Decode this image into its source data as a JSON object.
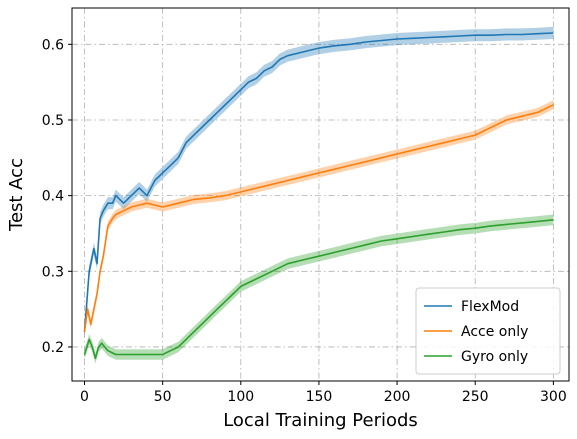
{
  "chart_data": {
    "type": "line",
    "xlabel": "Local Training Periods",
    "ylabel": "Test Acc",
    "xlim": [
      -8,
      310
    ],
    "ylim": [
      0.155,
      0.648
    ],
    "xticks": [
      0,
      50,
      100,
      150,
      200,
      250,
      300
    ],
    "yticks": [
      0.2,
      0.3,
      0.4,
      0.5,
      0.6
    ],
    "grid": true,
    "grid_style": "dash-dot",
    "legend_position": "lower-right",
    "series": [
      {
        "name": "FlexMod",
        "color": "#1f77b4",
        "band_half_width": 0.008,
        "x": [
          0,
          3,
          6,
          8,
          10,
          12,
          15,
          18,
          20,
          25,
          30,
          35,
          40,
          45,
          50,
          55,
          60,
          65,
          70,
          75,
          80,
          85,
          90,
          95,
          100,
          105,
          110,
          115,
          120,
          125,
          130,
          140,
          150,
          160,
          170,
          180,
          190,
          200,
          210,
          220,
          230,
          240,
          250,
          260,
          270,
          280,
          290,
          300
        ],
        "y": [
          0.22,
          0.3,
          0.33,
          0.31,
          0.37,
          0.38,
          0.39,
          0.39,
          0.4,
          0.39,
          0.4,
          0.41,
          0.4,
          0.42,
          0.43,
          0.44,
          0.45,
          0.47,
          0.48,
          0.49,
          0.5,
          0.51,
          0.52,
          0.53,
          0.54,
          0.55,
          0.555,
          0.565,
          0.57,
          0.58,
          0.585,
          0.59,
          0.595,
          0.598,
          0.6,
          0.603,
          0.605,
          0.607,
          0.608,
          0.609,
          0.61,
          0.611,
          0.612,
          0.612,
          0.613,
          0.613,
          0.614,
          0.615
        ]
      },
      {
        "name": "Acce only",
        "color": "#ff7f0e",
        "band_half_width": 0.006,
        "x": [
          0,
          2,
          4,
          6,
          8,
          10,
          12,
          15,
          18,
          20,
          25,
          30,
          40,
          50,
          60,
          70,
          80,
          90,
          100,
          110,
          120,
          130,
          140,
          150,
          160,
          170,
          180,
          190,
          200,
          210,
          220,
          230,
          240,
          250,
          260,
          270,
          280,
          290,
          300
        ],
        "y": [
          0.22,
          0.25,
          0.23,
          0.25,
          0.27,
          0.3,
          0.32,
          0.36,
          0.37,
          0.375,
          0.38,
          0.385,
          0.39,
          0.385,
          0.39,
          0.395,
          0.397,
          0.4,
          0.405,
          0.41,
          0.415,
          0.42,
          0.425,
          0.43,
          0.435,
          0.44,
          0.445,
          0.45,
          0.455,
          0.46,
          0.465,
          0.47,
          0.475,
          0.48,
          0.49,
          0.5,
          0.505,
          0.51,
          0.52
        ]
      },
      {
        "name": "Gyro only",
        "color": "#2ca02c",
        "band_half_width": 0.007,
        "x": [
          0,
          3,
          5,
          7,
          9,
          11,
          13,
          15,
          20,
          30,
          40,
          50,
          55,
          60,
          65,
          70,
          75,
          80,
          85,
          90,
          95,
          100,
          110,
          120,
          130,
          140,
          150,
          160,
          170,
          180,
          190,
          200,
          210,
          220,
          230,
          240,
          250,
          260,
          270,
          280,
          290,
          300
        ],
        "y": [
          0.19,
          0.21,
          0.2,
          0.185,
          0.2,
          0.205,
          0.2,
          0.195,
          0.19,
          0.19,
          0.19,
          0.19,
          0.195,
          0.2,
          0.21,
          0.22,
          0.23,
          0.24,
          0.25,
          0.26,
          0.27,
          0.28,
          0.29,
          0.3,
          0.31,
          0.315,
          0.32,
          0.325,
          0.33,
          0.335,
          0.34,
          0.343,
          0.346,
          0.349,
          0.352,
          0.355,
          0.357,
          0.36,
          0.362,
          0.364,
          0.366,
          0.368
        ]
      }
    ]
  }
}
